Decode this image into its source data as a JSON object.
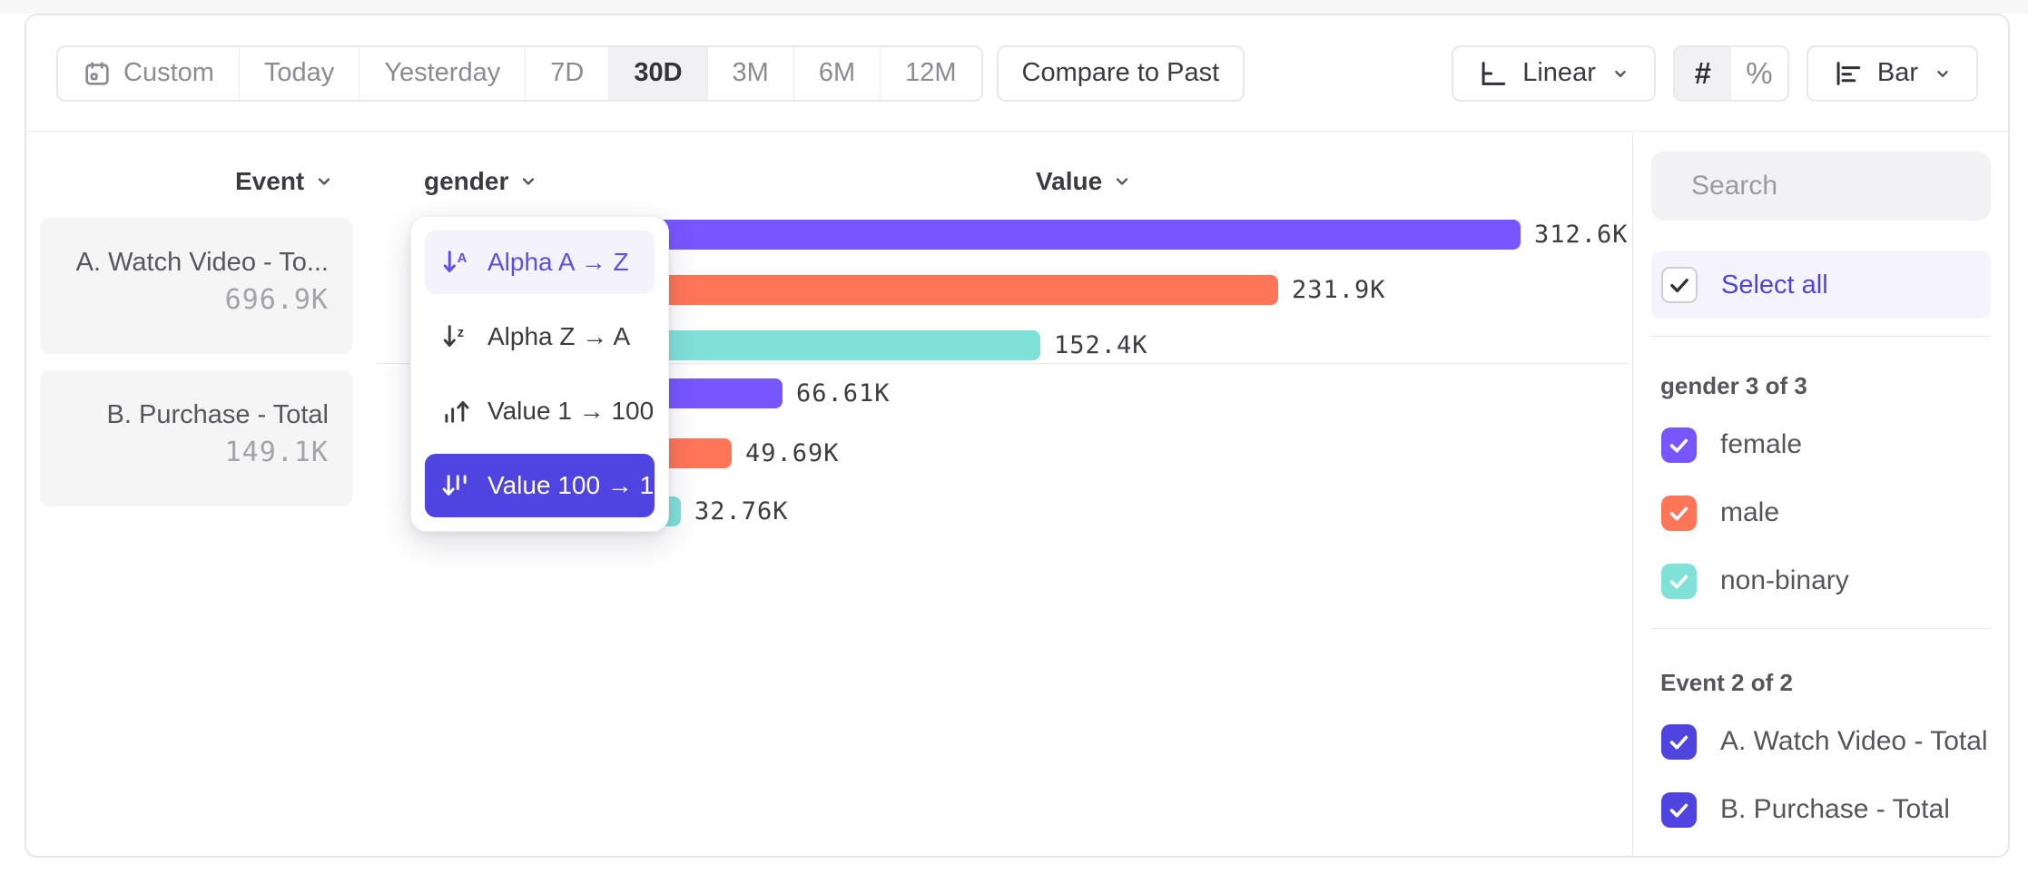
{
  "toolbar": {
    "date_ranges": [
      {
        "label": "Custom",
        "icon": "calendar-icon"
      },
      {
        "label": "Today"
      },
      {
        "label": "Yesterday"
      },
      {
        "label": "7D"
      },
      {
        "label": "30D"
      },
      {
        "label": "3M"
      },
      {
        "label": "6M"
      },
      {
        "label": "12M"
      }
    ],
    "active_range": "30D",
    "compare_label": "Compare to Past",
    "scale_label": "Linear",
    "number_symbol": "#",
    "percent_symbol": "%",
    "chart_type_label": "Bar"
  },
  "columns": {
    "event": "Event",
    "breakdown": "gender",
    "value": "Value"
  },
  "events": [
    {
      "label": "A. Watch Video - To...",
      "value": "696.9K"
    },
    {
      "label": "B. Purchase - Total",
      "value": "149.1K"
    }
  ],
  "sort_menu": {
    "items": [
      {
        "label": "Alpha A → Z",
        "icon": "sort-alpha-asc-icon",
        "state": "hover"
      },
      {
        "label": "Alpha Z → A",
        "icon": "sort-alpha-desc-icon",
        "state": "normal"
      },
      {
        "label": "Value 1 → 100",
        "icon": "sort-value-asc-icon",
        "state": "normal"
      },
      {
        "label": "Value 100 → 1",
        "icon": "sort-value-desc-icon",
        "state": "selected"
      }
    ]
  },
  "chart_data": {
    "type": "bar",
    "orientation": "horizontal",
    "sort": "Value 100 → 1",
    "max_value": 312600,
    "groups": [
      {
        "event": "A. Watch Video - Total",
        "bars": [
          {
            "category": "female",
            "value": 312600,
            "label": "312.6K",
            "color": "#7856FF"
          },
          {
            "category": "male",
            "value": 231900,
            "label": "231.9K",
            "color": "#FF7557"
          },
          {
            "category": "non-binary",
            "value": 152400,
            "label": "152.4K",
            "color": "#80E1D9"
          }
        ]
      },
      {
        "event": "B. Purchase - Total",
        "bars": [
          {
            "category": "female",
            "value": 66610,
            "label": "66.61K",
            "color": "#7856FF"
          },
          {
            "category": "male",
            "value": 49690,
            "label": "49.69K",
            "color": "#FF7557"
          },
          {
            "category": "non-binary",
            "value": 32760,
            "label": "32.76K",
            "color": "#80E1D9"
          }
        ]
      }
    ]
  },
  "sidebar": {
    "search_placeholder": "Search",
    "select_all_label": "Select all",
    "sections": [
      {
        "title": "gender 3 of 3",
        "items": [
          {
            "label": "female",
            "checked": true,
            "color": "#7856FF"
          },
          {
            "label": "male",
            "checked": true,
            "color": "#FF7557"
          },
          {
            "label": "non-binary",
            "checked": true,
            "color": "#80E1D9"
          }
        ]
      },
      {
        "title": "Event 2 of 2",
        "items": [
          {
            "label": "A. Watch Video - Total",
            "checked": true,
            "color": "#4F44E0"
          },
          {
            "label": "B. Purchase - Total",
            "checked": true,
            "color": "#4F44E0"
          }
        ]
      }
    ]
  },
  "colors": {
    "accent_indigo": "#4F44E0",
    "menu_hover_text": "#5B4FE8",
    "bar_purple": "#7856FF",
    "bar_coral": "#FF7557",
    "bar_teal": "#80E1D9",
    "border": "#E8E8EA",
    "muted_text": "#8B8B92"
  }
}
